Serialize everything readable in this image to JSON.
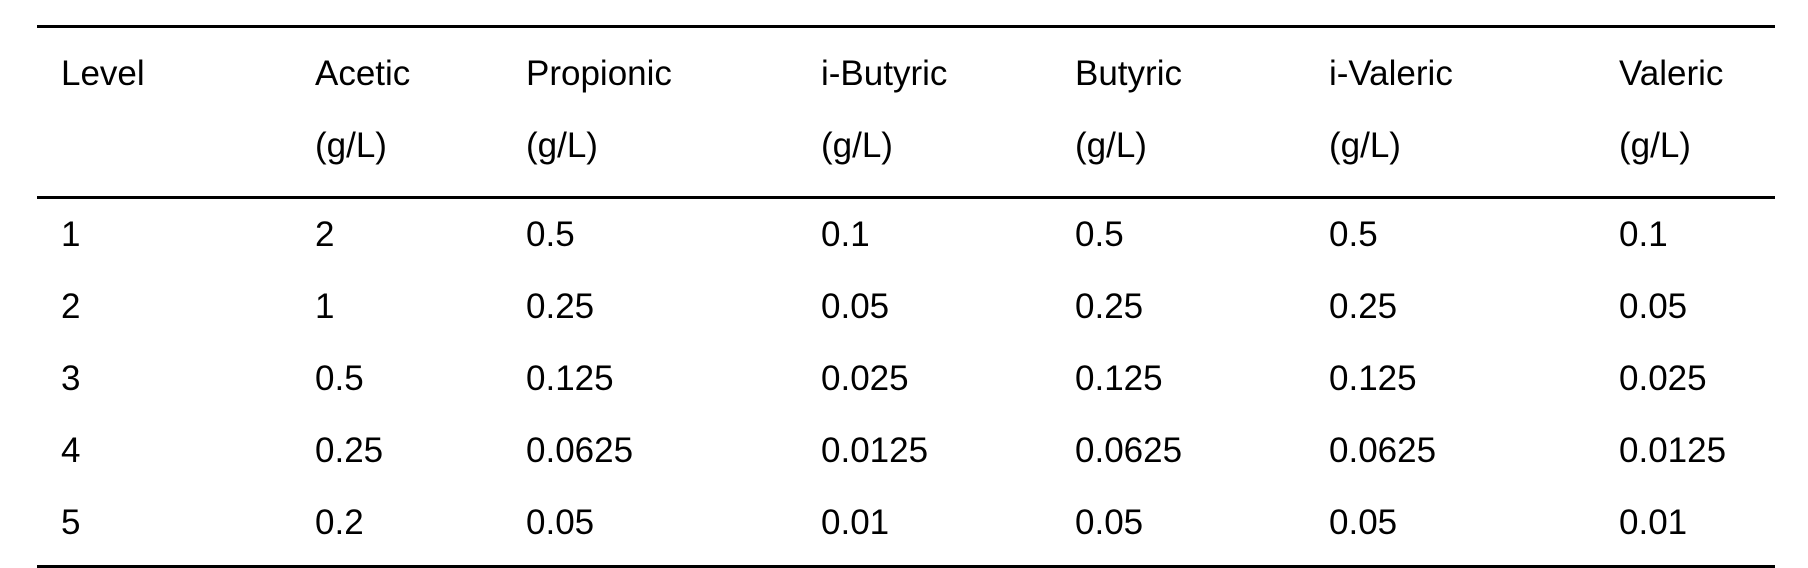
{
  "table": {
    "headers": [
      {
        "name": "Level",
        "unit": ""
      },
      {
        "name": "Acetic",
        "unit": "(g/L)"
      },
      {
        "name": "Propionic",
        "unit": "(g/L)"
      },
      {
        "name": "i-Butyric",
        "unit": "(g/L)"
      },
      {
        "name": "Butyric",
        "unit": "(g/L)"
      },
      {
        "name": "i-Valeric",
        "unit": "(g/L)"
      },
      {
        "name": "Valeric",
        "unit": "(g/L)"
      }
    ],
    "rows": [
      [
        "1",
        "2",
        "0.5",
        "0.1",
        "0.5",
        "0.5",
        "0.1"
      ],
      [
        "2",
        "1",
        "0.25",
        "0.05",
        "0.25",
        "0.25",
        "0.05"
      ],
      [
        "3",
        "0.5",
        "0.125",
        "0.025",
        "0.125",
        "0.125",
        "0.025"
      ],
      [
        "4",
        "0.25",
        "0.0625",
        "0.0125",
        "0.0625",
        "0.0625",
        "0.0125"
      ],
      [
        "5",
        "0.2",
        "0.05",
        "0.01",
        "0.05",
        "0.05",
        "0.01"
      ]
    ]
  }
}
